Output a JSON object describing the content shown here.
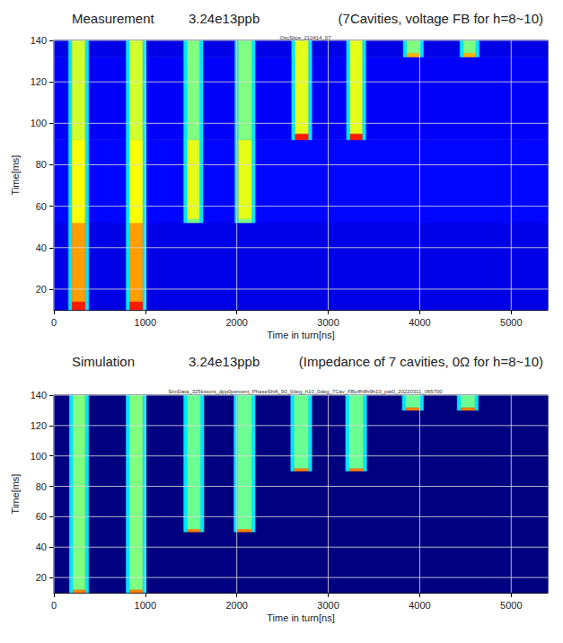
{
  "chart_data": [
    {
      "type": "heatmap",
      "title": "Measurement",
      "subtitle": "3.24e13ppb",
      "annotations": [
        "(7Cavities, voltage FB for h=8~10)",
        "OscSlice_210414_07"
      ],
      "x_label": "Time in turn[ns]",
      "y_label": "Time[ms]",
      "xlim": [
        0,
        5400
      ],
      "xticks": [
        0,
        1000,
        2000,
        3000,
        4000,
        5000
      ],
      "ylim": [
        10,
        140
      ],
      "yticks": [
        20,
        40,
        60,
        80,
        100,
        120,
        140
      ],
      "grid": true,
      "clim": [
        0,
        1
      ],
      "cells": [
        [
          0,
          5400,
          10,
          52,
          0.1
        ],
        [
          0,
          5400,
          52,
          92,
          0.13
        ],
        [
          0,
          5400,
          92,
          132,
          0.12
        ],
        [
          0,
          5400,
          132,
          140,
          0.1
        ],
        [
          160,
          200,
          10,
          140,
          0.35
        ],
        [
          340,
          380,
          10,
          140,
          0.35
        ],
        [
          200,
          340,
          10,
          14,
          0.85
        ],
        [
          200,
          340,
          14,
          52,
          0.72
        ],
        [
          200,
          340,
          52,
          92,
          0.62
        ],
        [
          200,
          340,
          92,
          140,
          0.58
        ],
        [
          790,
          830,
          10,
          140,
          0.35
        ],
        [
          970,
          1010,
          10,
          140,
          0.35
        ],
        [
          830,
          970,
          10,
          14,
          0.85
        ],
        [
          830,
          970,
          14,
          52,
          0.72
        ],
        [
          830,
          970,
          52,
          92,
          0.62
        ],
        [
          830,
          970,
          92,
          140,
          0.58
        ],
        [
          1420,
          1460,
          52,
          140,
          0.35
        ],
        [
          1590,
          1630,
          52,
          140,
          0.35
        ],
        [
          1460,
          1590,
          52,
          54,
          0.5
        ],
        [
          1460,
          1590,
          54,
          92,
          0.6
        ],
        [
          1460,
          1590,
          92,
          140,
          0.5
        ],
        [
          1980,
          2020,
          52,
          140,
          0.35
        ],
        [
          2160,
          2200,
          52,
          140,
          0.35
        ],
        [
          2020,
          2160,
          52,
          54,
          0.5
        ],
        [
          2020,
          2160,
          54,
          92,
          0.6
        ],
        [
          2020,
          2160,
          92,
          140,
          0.5
        ],
        [
          2600,
          2640,
          92,
          140,
          0.35
        ],
        [
          2780,
          2820,
          92,
          140,
          0.35
        ],
        [
          2640,
          2780,
          92,
          95,
          0.85
        ],
        [
          2640,
          2780,
          95,
          140,
          0.6
        ],
        [
          3200,
          3240,
          92,
          140,
          0.35
        ],
        [
          3370,
          3410,
          92,
          140,
          0.35
        ],
        [
          3240,
          3370,
          92,
          95,
          0.85
        ],
        [
          3240,
          3370,
          95,
          140,
          0.6
        ],
        [
          3820,
          3860,
          132,
          140,
          0.35
        ],
        [
          4000,
          4040,
          132,
          140,
          0.35
        ],
        [
          3860,
          4000,
          132,
          134,
          0.7
        ],
        [
          3860,
          4000,
          134,
          140,
          0.5
        ],
        [
          4440,
          4480,
          132,
          140,
          0.35
        ],
        [
          4610,
          4650,
          132,
          140,
          0.35
        ],
        [
          4480,
          4610,
          132,
          134,
          0.7
        ],
        [
          4480,
          4610,
          134,
          140,
          0.5
        ]
      ]
    },
    {
      "type": "heatmap",
      "title": "Simulation",
      "subtitle": "3.24e13ppb",
      "annotations": [
        "(Impedance of 7 cavities, 0Ω for h=8~10)",
        "SimData_325ksions_dpp0percent_PhaseShift_90_0deg_h10_0deg_7Cav_FBoffh8h9h10_pat0_20220311_065700"
      ],
      "x_label": "Time in turn[ns]",
      "y_label": "Time[ms]",
      "xlim": [
        0,
        5400
      ],
      "xticks": [
        0,
        1000,
        2000,
        3000,
        4000,
        5000
      ],
      "ylim": [
        10,
        140
      ],
      "yticks": [
        20,
        40,
        60,
        80,
        100,
        120,
        140
      ],
      "grid": true,
      "clim": [
        0,
        1
      ],
      "cells": [
        [
          0,
          5400,
          10,
          140,
          0
        ],
        [
          170,
          210,
          10,
          140,
          0.35
        ],
        [
          340,
          380,
          10,
          140,
          0.35
        ],
        [
          210,
          340,
          10,
          12,
          0.75
        ],
        [
          210,
          340,
          12,
          140,
          0.5
        ],
        [
          790,
          830,
          10,
          140,
          0.35
        ],
        [
          970,
          1010,
          10,
          140,
          0.35
        ],
        [
          830,
          970,
          10,
          12,
          0.75
        ],
        [
          830,
          970,
          12,
          140,
          0.5
        ],
        [
          1420,
          1460,
          50,
          140,
          0.35
        ],
        [
          1600,
          1640,
          50,
          140,
          0.35
        ],
        [
          1460,
          1600,
          50,
          52,
          0.75
        ],
        [
          1460,
          1600,
          52,
          140,
          0.48
        ],
        [
          1970,
          2010,
          50,
          140,
          0.35
        ],
        [
          2160,
          2200,
          50,
          140,
          0.35
        ],
        [
          2010,
          2160,
          50,
          52,
          0.75
        ],
        [
          2010,
          2160,
          52,
          140,
          0.48
        ],
        [
          2590,
          2630,
          90,
          140,
          0.35
        ],
        [
          2780,
          2820,
          90,
          140,
          0.35
        ],
        [
          2630,
          2780,
          90,
          92,
          0.75
        ],
        [
          2630,
          2780,
          92,
          140,
          0.48
        ],
        [
          3190,
          3230,
          90,
          140,
          0.35
        ],
        [
          3380,
          3420,
          90,
          140,
          0.35
        ],
        [
          3230,
          3380,
          90,
          92,
          0.75
        ],
        [
          3230,
          3380,
          92,
          140,
          0.48
        ],
        [
          3810,
          3850,
          130,
          140,
          0.35
        ],
        [
          4000,
          4040,
          130,
          140,
          0.35
        ],
        [
          3850,
          4000,
          130,
          132,
          0.75
        ],
        [
          3850,
          4000,
          132,
          140,
          0.48
        ],
        [
          4410,
          4450,
          130,
          140,
          0.35
        ],
        [
          4600,
          4640,
          130,
          140,
          0.35
        ],
        [
          4450,
          4600,
          130,
          132,
          0.75
        ],
        [
          4450,
          4600,
          132,
          140,
          0.48
        ]
      ]
    }
  ]
}
